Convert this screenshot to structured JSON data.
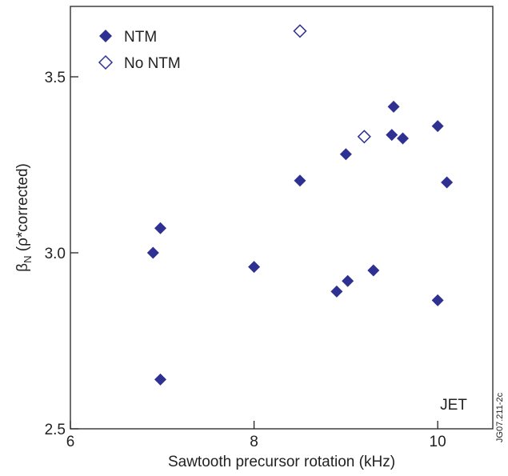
{
  "chart_data": {
    "type": "scatter",
    "title": "",
    "xlabel": "Sawtooth precursor rotation (kHz)",
    "ylabel_main": "β",
    "ylabel_sub": "N",
    "ylabel_rest": " (ρ*corrected)",
    "xlim": [
      6,
      10.6
    ],
    "ylim": [
      2.5,
      3.7
    ],
    "x_ticks": [
      6,
      8,
      10
    ],
    "y_ticks": [
      2.5,
      3.0,
      3.5
    ],
    "x_tick_labels": [
      "6",
      "8",
      "10"
    ],
    "y_tick_labels": [
      "2.5",
      "3.0",
      "3.5"
    ],
    "grid": false,
    "legend_position": "top-left",
    "series": [
      {
        "name": "NTM",
        "marker": "filled-diamond",
        "color": "#2e3192",
        "points": [
          {
            "x": 6.9,
            "y": 3.0
          },
          {
            "x": 6.98,
            "y": 3.07
          },
          {
            "x": 6.98,
            "y": 2.64
          },
          {
            "x": 8.0,
            "y": 2.96
          },
          {
            "x": 8.5,
            "y": 3.205
          },
          {
            "x": 8.9,
            "y": 2.89
          },
          {
            "x": 9.0,
            "y": 3.28
          },
          {
            "x": 9.02,
            "y": 2.92
          },
          {
            "x": 9.3,
            "y": 2.95
          },
          {
            "x": 9.5,
            "y": 3.335
          },
          {
            "x": 9.52,
            "y": 3.415
          },
          {
            "x": 9.62,
            "y": 3.325
          },
          {
            "x": 10.0,
            "y": 3.36
          },
          {
            "x": 10.0,
            "y": 2.865
          },
          {
            "x": 10.1,
            "y": 3.2
          }
        ]
      },
      {
        "name": "No NTM",
        "marker": "open-diamond",
        "color": "#2e3192",
        "points": [
          {
            "x": 8.5,
            "y": 3.63
          },
          {
            "x": 9.2,
            "y": 3.33
          }
        ]
      }
    ],
    "annotations": [
      "JET"
    ],
    "side_code": "JG07.211-2c"
  }
}
